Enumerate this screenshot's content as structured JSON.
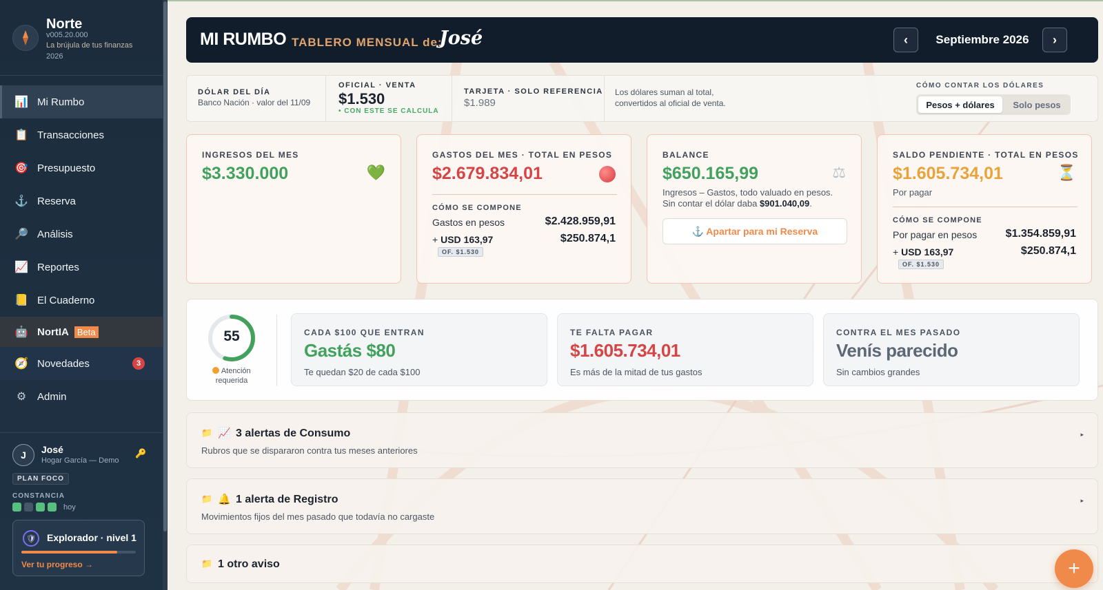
{
  "brand": {
    "name": "Norte",
    "version": "v005.20.000",
    "tagline": "La brújula de tus finanzas",
    "year": "2026"
  },
  "nav": {
    "items": [
      {
        "label": "Mi Rumbo",
        "icon": "bar-chart-icon",
        "glyph": "📊"
      },
      {
        "label": "Transacciones",
        "icon": "clipboard-icon",
        "glyph": "📋"
      },
      {
        "label": "Presupuesto",
        "icon": "target-icon",
        "glyph": "🎯"
      },
      {
        "label": "Reserva",
        "icon": "anchor-icon",
        "glyph": "⚓"
      },
      {
        "label": "Análisis",
        "icon": "magnifier-icon",
        "glyph": "🔎"
      },
      {
        "label": "Reportes",
        "icon": "line-chart-icon",
        "glyph": "📈"
      },
      {
        "label": "El Cuaderno",
        "icon": "notebook-icon",
        "glyph": "📒"
      },
      {
        "label": "NortIA",
        "icon": "robot-icon",
        "glyph": "🤖",
        "beta": "Beta"
      },
      {
        "label": "Novedades",
        "icon": "compass-icon",
        "glyph": "🧭",
        "badge": "3"
      },
      {
        "label": "Admin",
        "icon": "gear-icon",
        "glyph": "⚙"
      }
    ]
  },
  "user": {
    "initial": "J",
    "name": "José",
    "household": "Hogar García — Demo",
    "plan": "PLAN FOCO",
    "constancy_label": "CONSTANCIA",
    "constancy_days": [
      true,
      false,
      true,
      true
    ],
    "constancy_today": "hoy",
    "level_title": "Explorador · nivel 1",
    "level_progress": 0.84,
    "level_link": "Ver tu progreso →"
  },
  "header": {
    "title": "MI RUMBO",
    "subtitle": "TABLERO MENSUAL de:",
    "name": "José",
    "prev": "‹",
    "next": "›",
    "month": "Septiembre 2026"
  },
  "fx": {
    "dolar_label": "DÓLAR DEL DÍA",
    "dolar_source": "Banco Nación · valor del 11/09",
    "oficial_label": "OFICIAL · VENTA",
    "oficial_value": "$1.530",
    "oficial_note": "• CON ESTE SE CALCULA",
    "tarjeta_label": "TARJETA · SOLO REFERENCIA",
    "tarjeta_value": "$1.989",
    "note_line1": "Los dólares suman al total,",
    "note_line2": "convertidos al oficial de venta.",
    "mode_label": "CÓMO CONTAR LOS DÓLARES",
    "mode_a": "Pesos + dólares",
    "mode_b": "Solo pesos"
  },
  "cards": {
    "ingresos": {
      "label": "INGRESOS DEL MES",
      "value": "$3.330.000",
      "icon": "green-heart-icon",
      "glyph": "💚"
    },
    "gastos": {
      "label": "GASTOS DEL MES · TOTAL EN PESOS",
      "value": "$2.679.834,01",
      "icon": "red-circle-icon",
      "comp_label": "CÓMO SE COMPONE",
      "row1_label": "Gastos en pesos",
      "row1_value": "$2.428.959,91",
      "row2_prefix": "+",
      "row2_label": "USD 163,97",
      "row2_value": "$250.874,1",
      "of_tag": "OF. $1.530"
    },
    "balance": {
      "label": "BALANCE",
      "value": "$650.165,99",
      "icon": "scales-icon",
      "glyph": "⚖",
      "desc1": "Ingresos – Gastos, todo valuado en pesos.",
      "desc2_prefix": "Sin contar el dólar daba",
      "desc2_value": "$901.040,09",
      "desc2_suffix": ".",
      "action_icon": "⚓",
      "action": "Apartar para mi Reserva"
    },
    "saldo": {
      "label": "SALDO PENDIENTE · TOTAL EN PESOS",
      "value": "$1.605.734,01",
      "icon": "hourglass-icon",
      "glyph": "⏳",
      "sub": "Por pagar",
      "comp_label": "CÓMO SE COMPONE",
      "row1_label": "Por pagar en pesos",
      "row1_value": "$1.354.859,91",
      "row2_prefix": "+",
      "row2_label": "USD 163,97",
      "row2_value": "$250.874,1",
      "of_tag": "OF. $1.530"
    }
  },
  "summary": {
    "score": "55",
    "score_fraction": 0.55,
    "score_caption1": "Atención",
    "score_caption2": "requerida",
    "kpis": [
      {
        "label": "CADA $100 QUE ENTRAN",
        "value": "Gastás $80",
        "sub": "Te quedan $20 de cada $100",
        "color": "#43a15e"
      },
      {
        "label": "TE FALTA PAGAR",
        "value": "$1.605.734,01",
        "sub": "Es más de la mitad de tus gastos",
        "color": "#d64545"
      },
      {
        "label": "CONTRA EL MES PASADO",
        "value": "Venís parecido",
        "sub": "Sin cambios grandes",
        "color": "#5d6877"
      }
    ]
  },
  "alerts": [
    {
      "icon": "folder-icon",
      "icon2": "line-chart-icon",
      "glyph2": "📈",
      "title": "3 alertas de Consumo",
      "sub": "Rubros que se dispararon contra tus meses anteriores"
    },
    {
      "icon": "folder-icon",
      "icon2": "bell-icon",
      "glyph2": "🔔",
      "title": "1 alerta de Registro",
      "sub": "Movimientos fijos del mes pasado que todavía no cargaste"
    },
    {
      "icon": "folder-icon",
      "title": "1 otro aviso"
    }
  ],
  "fab": "+",
  "colors": {
    "accent": "#f08a4b",
    "green": "#43a15e",
    "red": "#d64545",
    "amber": "#e8a33a",
    "navy": "#111d2b"
  }
}
